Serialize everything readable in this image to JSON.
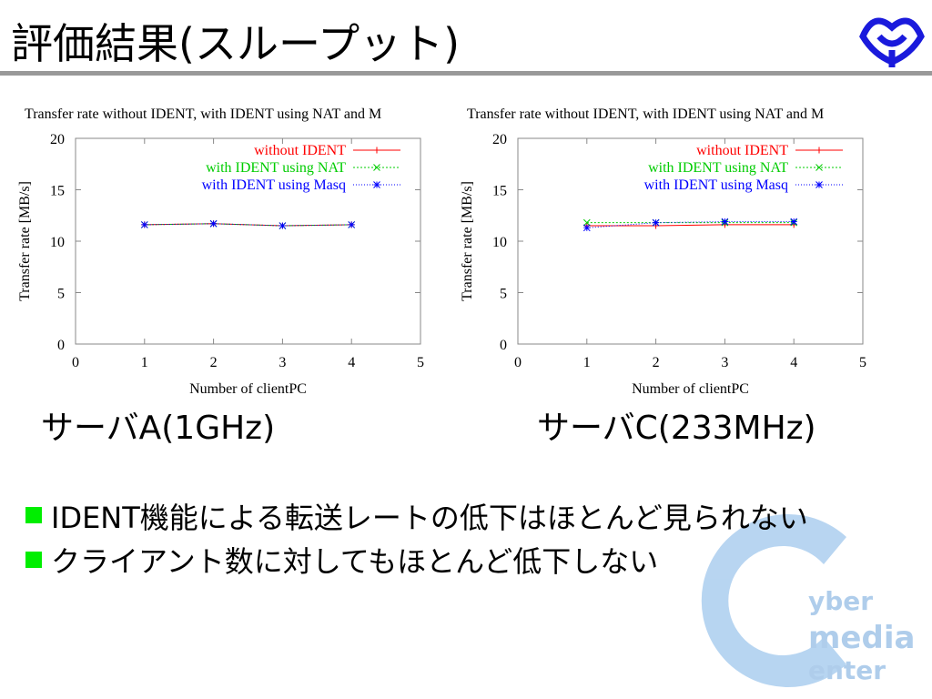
{
  "header": {
    "title": "評価結果(スループット)"
  },
  "chart_data": [
    {
      "type": "line",
      "title": "Transfer rate without IDENT, with IDENT using NAT and M",
      "xlabel": "Number of clientPC",
      "ylabel": "Transfer rate [MB/s]",
      "x": [
        1,
        2,
        3,
        4
      ],
      "xlim": [
        0,
        5
      ],
      "ylim": [
        0,
        20
      ],
      "xticks": [
        0,
        1,
        2,
        3,
        4,
        5
      ],
      "yticks": [
        0,
        5,
        10,
        15,
        20
      ],
      "legend": "upper right",
      "series": [
        {
          "name": "without IDENT",
          "color": "#ff0000",
          "values": [
            11.6,
            11.7,
            11.5,
            11.6
          ]
        },
        {
          "name": "with IDENT using NAT",
          "color": "#00cc00",
          "values": [
            11.6,
            11.7,
            11.5,
            11.6
          ]
        },
        {
          "name": "with IDENT using Masq",
          "color": "#0000ff",
          "values": [
            11.6,
            11.7,
            11.5,
            11.6
          ]
        }
      ]
    },
    {
      "type": "line",
      "title": "Transfer rate without IDENT, with IDENT using NAT and M",
      "xlabel": "Number of clientPC",
      "ylabel": "Transfer rate [MB/s]",
      "x": [
        1,
        2,
        3,
        4
      ],
      "xlim": [
        0,
        5
      ],
      "ylim": [
        0,
        20
      ],
      "xticks": [
        0,
        1,
        2,
        3,
        4,
        5
      ],
      "yticks": [
        0,
        5,
        10,
        15,
        20
      ],
      "legend": "upper right",
      "series": [
        {
          "name": "without IDENT",
          "color": "#ff0000",
          "values": [
            11.5,
            11.5,
            11.6,
            11.6
          ]
        },
        {
          "name": "with IDENT using NAT",
          "color": "#00cc00",
          "values": [
            11.8,
            11.8,
            11.8,
            11.8
          ]
        },
        {
          "name": "with IDENT using Masq",
          "color": "#0000ff",
          "values": [
            11.3,
            11.8,
            11.9,
            11.9
          ]
        }
      ]
    }
  ],
  "captions": [
    "サーバA(1GHz)",
    "サーバC(233MHz)"
  ],
  "bullets": [
    "IDENT機能による転送レートの低下はほとんど見られない",
    "クライアント数に対してもほとんど低下しない"
  ],
  "watermark": [
    "yber",
    "media",
    "enter"
  ]
}
